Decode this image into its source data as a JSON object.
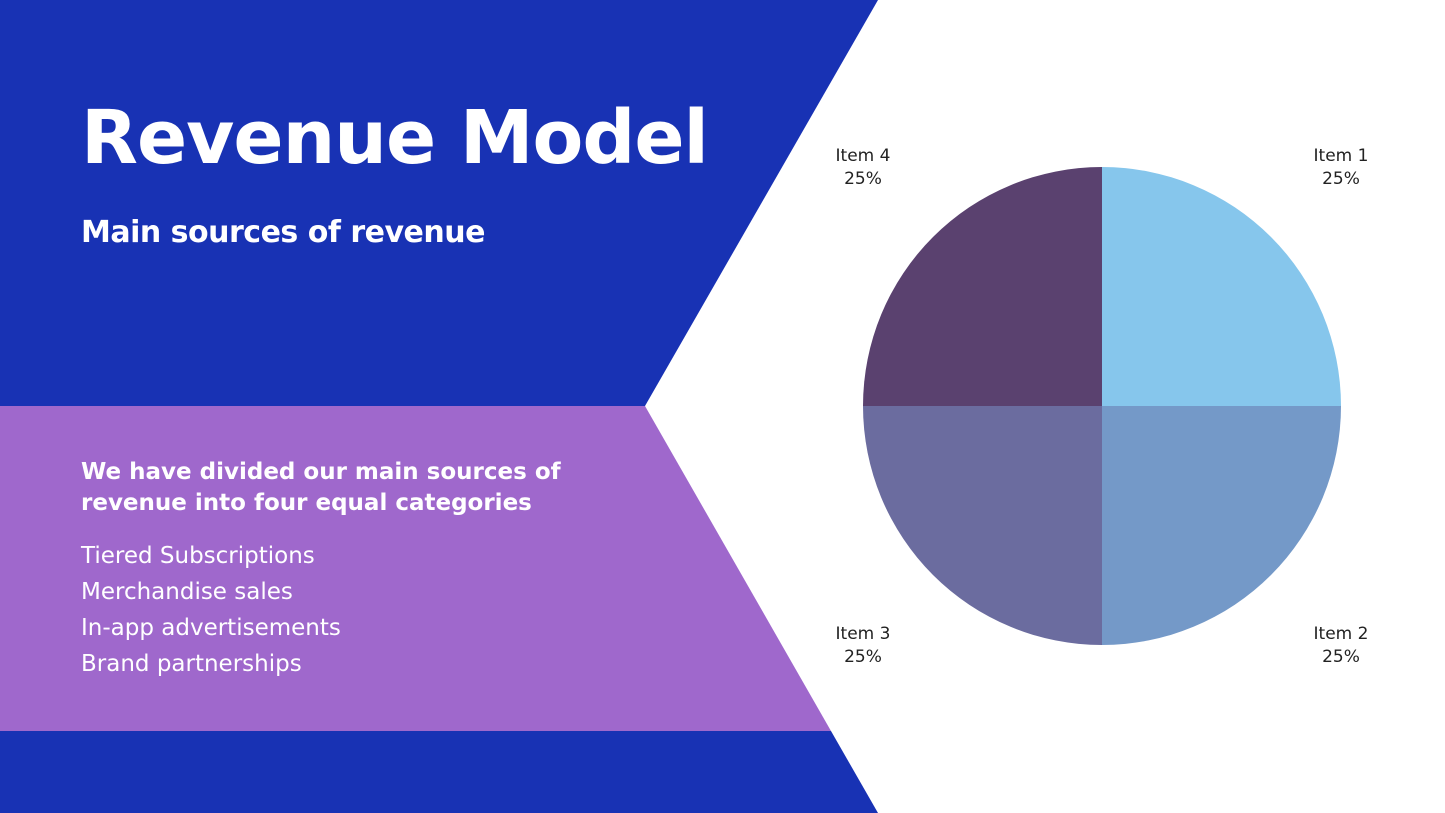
{
  "slide": {
    "title": "Revenue Model",
    "subtitle": "Main sources of revenue",
    "intro": "We have divided our main sources of revenue into four equal categories",
    "sources": [
      "Tiered Subscriptions",
      "Merchandise sales",
      "In-app advertisements",
      "Brand partnerships"
    ]
  },
  "colors": {
    "background": "#ffffff",
    "blue_band": "#1832b4",
    "purple_band": "#9f68cc",
    "text_light": "#ffffff",
    "label_text": "#222222"
  },
  "chart_data": {
    "type": "pie",
    "title": "",
    "labels": [
      "Item 1",
      "Item 2",
      "Item 3",
      "Item 4"
    ],
    "values": [
      25,
      25,
      25,
      25
    ],
    "value_labels": [
      "25%",
      "25%",
      "25%",
      "25%"
    ],
    "colors": [
      "#86c6ec",
      "#7499c8",
      "#6b6c9f",
      "#5a416f"
    ],
    "start_angle": "12 o'clock",
    "direction": "clockwise",
    "legend": "none"
  }
}
